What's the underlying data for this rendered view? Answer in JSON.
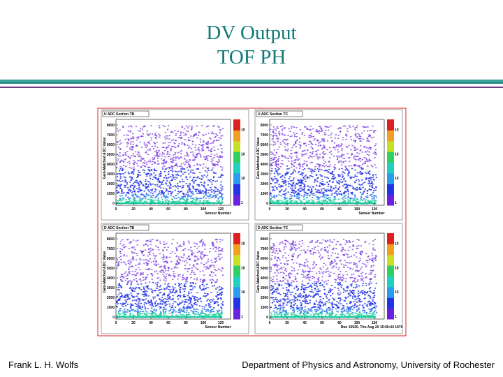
{
  "header": {
    "title_lines": [
      "DV Output",
      "TOF PH"
    ]
  },
  "panels": [
    {
      "title": "U ADC Section TB",
      "x_label": "Sensor Number",
      "y_label": "Gain-Matched ADC Value",
      "x_ticks": [
        "0",
        "20",
        "40",
        "60",
        "80",
        "100",
        "120"
      ],
      "y_ticks": [
        "0",
        "1000",
        "2000",
        "3000",
        "4000",
        "5000",
        "6000",
        "7000",
        "8000"
      ],
      "scale_labels": [
        "1",
        "10",
        "10",
        "10"
      ]
    },
    {
      "title": "U ADC Section TC",
      "x_label": "Sensor Number",
      "y_label": "Gain-Matched ADC Value",
      "x_ticks": [
        "0",
        "20",
        "40",
        "60",
        "80",
        "100",
        "120"
      ],
      "y_ticks": [
        "0",
        "1000",
        "2000",
        "3000",
        "4000",
        "5000",
        "6000",
        "7000",
        "8000"
      ],
      "scale_labels": [
        "1",
        "10",
        "10",
        "10"
      ]
    },
    {
      "title": "D ADC Section TB",
      "x_label": "Sensor Number",
      "y_label": "Gain-Matched ADC Value",
      "x_ticks": [
        "0",
        "20",
        "40",
        "60",
        "80",
        "100",
        "120"
      ],
      "y_ticks": [
        "0",
        "1000",
        "2000",
        "3000",
        "4000",
        "5000",
        "6000",
        "7000",
        "8000"
      ],
      "scale_labels": [
        "1",
        "10",
        "10",
        "10"
      ]
    },
    {
      "title": "D ADC Section TC",
      "x_label": "Run 10920, Thu Aug 20 15:56:44 1970",
      "y_label": "Gain-Matched ADC Value",
      "x_ticks": [
        "0",
        "20",
        "40",
        "60",
        "80",
        "100",
        "120"
      ],
      "y_ticks": [
        "0",
        "1000",
        "2000",
        "3000",
        "4000",
        "5000",
        "6000",
        "7000",
        "8000"
      ],
      "scale_labels": [
        "1",
        "10",
        "10",
        "10"
      ]
    }
  ],
  "footer": {
    "left": "Frank L. H. Wolfs",
    "right": "Department of Physics and Astronomy, University of Rochester"
  }
}
